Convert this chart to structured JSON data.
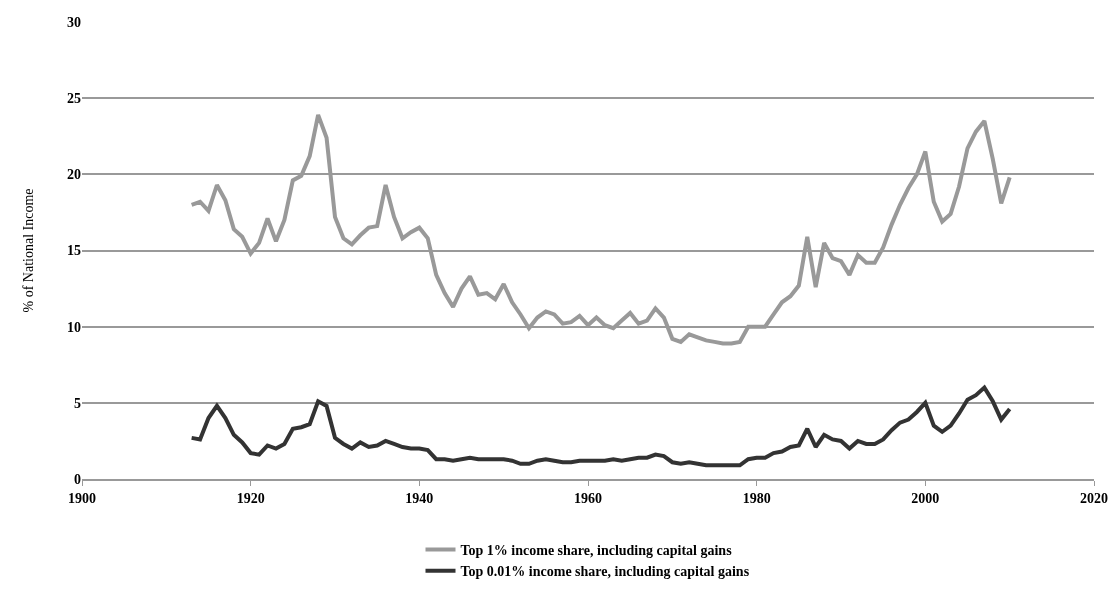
{
  "chart_data": {
    "type": "line",
    "ylabel": "% of National Income",
    "x": [
      1913,
      1914,
      1915,
      1916,
      1917,
      1918,
      1919,
      1920,
      1921,
      1922,
      1923,
      1924,
      1925,
      1926,
      1927,
      1928,
      1929,
      1930,
      1931,
      1932,
      1933,
      1934,
      1935,
      1936,
      1937,
      1938,
      1939,
      1940,
      1941,
      1942,
      1943,
      1944,
      1945,
      1946,
      1947,
      1948,
      1949,
      1950,
      1951,
      1952,
      1953,
      1954,
      1955,
      1956,
      1957,
      1958,
      1959,
      1960,
      1961,
      1962,
      1963,
      1964,
      1965,
      1966,
      1967,
      1968,
      1969,
      1970,
      1971,
      1972,
      1973,
      1974,
      1975,
      1976,
      1977,
      1978,
      1979,
      1980,
      1981,
      1982,
      1983,
      1984,
      1985,
      1986,
      1987,
      1988,
      1989,
      1990,
      1991,
      1992,
      1993,
      1994,
      1995,
      1996,
      1997,
      1998,
      1999,
      2000,
      2001,
      2002,
      2003,
      2004,
      2005,
      2006,
      2007,
      2008,
      2009,
      2010
    ],
    "series": [
      {
        "name": "Top 1% income share, including capital gains",
        "color": "#999999",
        "values": [
          18.0,
          18.2,
          17.6,
          19.3,
          18.3,
          16.4,
          15.9,
          14.8,
          15.5,
          17.1,
          15.6,
          17.0,
          19.6,
          19.9,
          21.2,
          23.9,
          22.4,
          17.2,
          15.8,
          15.4,
          16.0,
          16.5,
          16.6,
          19.3,
          17.2,
          15.8,
          16.2,
          16.5,
          15.8,
          13.4,
          12.2,
          11.3,
          12.5,
          13.3,
          12.1,
          12.2,
          11.8,
          12.8,
          11.6,
          10.8,
          9.9,
          10.6,
          11.0,
          10.8,
          10.2,
          10.3,
          10.7,
          10.1,
          10.6,
          10.1,
          9.9,
          10.4,
          10.9,
          10.2,
          10.4,
          11.2,
          10.6,
          9.2,
          9.0,
          9.5,
          9.3,
          9.1,
          9.0,
          8.9,
          8.9,
          9.0,
          10.0,
          10.0,
          10.0,
          10.8,
          11.6,
          12.0,
          12.7,
          15.9,
          12.6,
          15.5,
          14.5,
          14.3,
          13.4,
          14.7,
          14.2,
          14.2,
          15.2,
          16.7,
          18.0,
          19.1,
          20.0,
          21.5,
          18.2,
          16.9,
          17.4,
          19.2,
          21.7,
          22.8,
          23.5,
          21.0,
          18.1,
          19.8
        ]
      },
      {
        "name": "Top 0.01% income share, including capital gains",
        "color": "#333333",
        "values": [
          2.7,
          2.6,
          4.0,
          4.8,
          4.0,
          2.9,
          2.4,
          1.7,
          1.6,
          2.2,
          2.0,
          2.3,
          3.3,
          3.4,
          3.6,
          5.1,
          4.8,
          2.7,
          2.3,
          2.0,
          2.4,
          2.1,
          2.2,
          2.5,
          2.3,
          2.1,
          2.0,
          2.0,
          1.9,
          1.3,
          1.3,
          1.2,
          1.3,
          1.4,
          1.3,
          1.3,
          1.3,
          1.3,
          1.2,
          1.0,
          1.0,
          1.2,
          1.3,
          1.2,
          1.1,
          1.1,
          1.2,
          1.2,
          1.2,
          1.2,
          1.3,
          1.2,
          1.3,
          1.4,
          1.4,
          1.6,
          1.5,
          1.1,
          1.0,
          1.1,
          1.0,
          0.9,
          0.9,
          0.9,
          0.9,
          0.9,
          1.3,
          1.4,
          1.4,
          1.7,
          1.8,
          2.1,
          2.2,
          3.3,
          2.1,
          2.9,
          2.6,
          2.5,
          2.0,
          2.5,
          2.3,
          2.3,
          2.6,
          3.2,
          3.7,
          3.9,
          4.4,
          5.0,
          3.5,
          3.1,
          3.5,
          4.3,
          5.2,
          5.5,
          6.0,
          5.1,
          3.9,
          4.6
        ]
      }
    ],
    "xlim": [
      1900,
      2020
    ],
    "xticks": [
      1900,
      1920,
      1940,
      1960,
      1980,
      2000,
      2020
    ],
    "ylim": [
      0,
      30
    ],
    "yticks": [
      0,
      5,
      10,
      15,
      20,
      25,
      30
    ],
    "grid": "y",
    "legend": "bottom",
    "line_style": "solid",
    "marker": "none"
  }
}
